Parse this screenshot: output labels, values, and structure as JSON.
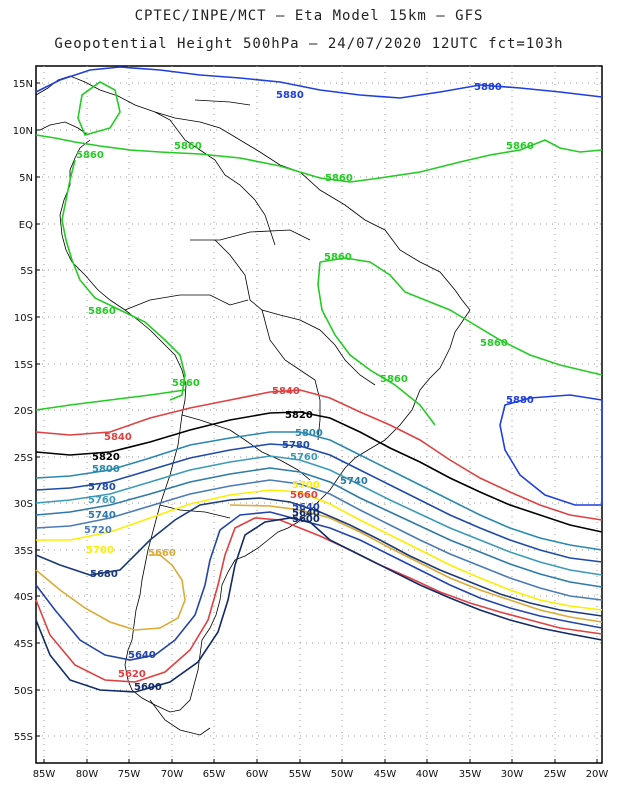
{
  "title_line1": "CPTEC/INPE/MCT –  Eta Model 15km – GFS",
  "title_line2": "Geopotential Height 500hPa – 24/07/2020 12UTC fct=103h",
  "lat_labels": [
    "15N",
    "10N",
    "5N",
    "EQ",
    "5S",
    "10S",
    "15S",
    "20S",
    "25S",
    "30S",
    "35S",
    "40S",
    "45S",
    "50S",
    "55S"
  ],
  "lon_labels": [
    "85W",
    "80W",
    "75W",
    "70W",
    "65W",
    "60W",
    "55W",
    "50W",
    "45W",
    "40W",
    "35W",
    "30W",
    "25W",
    "20W"
  ],
  "colors": {
    "c5880": "#1f3fe0",
    "c5860": "#22cc22",
    "c5840": "#e04040",
    "c5820": "#000000",
    "c5800": "#2a88b0",
    "c5780": "#1e4aa8",
    "c5760": "#3a9ab8",
    "c5740": "#2e7aa8",
    "c5720": "#4a7ab8",
    "c5700": "#ffee00",
    "c5680": "#1a3a7a",
    "c5660": "#ddaa33",
    "c5640": "#2244aa",
    "c5600": "#102a6a"
  },
  "contour_labels": [
    {
      "text": "5880",
      "color": "#1f3fe0"
    },
    {
      "text": "5880",
      "color": "#1f3fe0"
    },
    {
      "text": "5880",
      "color": "#1f3fe0"
    },
    {
      "text": "5860",
      "color": "#22cc22"
    },
    {
      "text": "5860",
      "color": "#22cc22"
    },
    {
      "text": "5860",
      "color": "#22cc22"
    },
    {
      "text": "5860",
      "color": "#22cc22"
    },
    {
      "text": "5860",
      "color": "#22cc22"
    },
    {
      "text": "5860",
      "color": "#22cc22"
    },
    {
      "text": "5860",
      "color": "#22cc22"
    },
    {
      "text": "5860",
      "color": "#22cc22"
    },
    {
      "text": "5860",
      "color": "#22cc22"
    },
    {
      "text": "5840",
      "color": "#e04040"
    },
    {
      "text": "5840",
      "color": "#e04040"
    },
    {
      "text": "5820",
      "color": "#000000"
    },
    {
      "text": "5820",
      "color": "#000000"
    },
    {
      "text": "5800",
      "color": "#2a88b0"
    },
    {
      "text": "5800",
      "color": "#2a88b0"
    },
    {
      "text": "5780",
      "color": "#1e4aa8"
    },
    {
      "text": "5780",
      "color": "#1e4aa8"
    },
    {
      "text": "5760",
      "color": "#3a9ab8"
    },
    {
      "text": "5760",
      "color": "#3a9ab8"
    },
    {
      "text": "5740",
      "color": "#2e7aa8"
    },
    {
      "text": "5740",
      "color": "#2e7aa8"
    },
    {
      "text": "5720",
      "color": "#4a7ab8"
    },
    {
      "text": "5700",
      "color": "#ffee00"
    },
    {
      "text": "5700",
      "color": "#ffee00"
    },
    {
      "text": "5680",
      "color": "#1a3a7a"
    },
    {
      "text": "5660",
      "color": "#ddaa33"
    },
    {
      "text": "5640",
      "color": "#2244aa"
    },
    {
      "text": "5640",
      "color": "#2244aa"
    },
    {
      "text": "5620",
      "color": "#e04040"
    },
    {
      "text": "5600",
      "color": "#102a6a"
    },
    {
      "text": "5600",
      "color": "#102a6a"
    },
    {
      "text": "5660",
      "color": "#e04040"
    },
    {
      "text": "5640",
      "color": "#102a6a"
    }
  ]
}
